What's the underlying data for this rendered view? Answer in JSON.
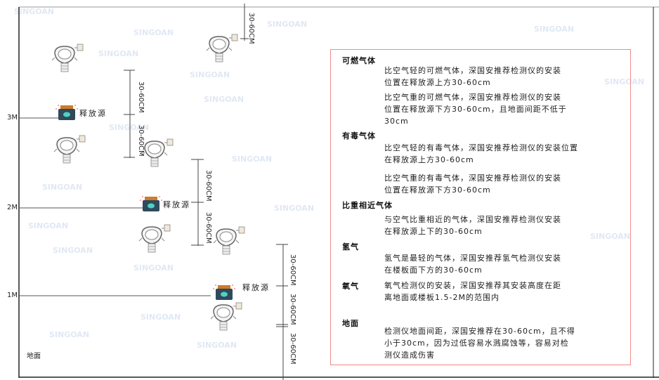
{
  "levels": {
    "l3": "3M",
    "l2": "2M",
    "l1": "1M",
    "ground": "地面"
  },
  "source_label": "释放源",
  "dimension_label": "30-60CM",
  "watermark": "SINGOAN 深国安",
  "colors": {
    "frame": "#333333",
    "box_border": "#f08a8a",
    "source_body": "#2f4a5a",
    "source_cap": "#d07a2a",
    "source_icon": "#4fd1c5"
  },
  "info": {
    "combustible": {
      "title": "可燃气体",
      "lighter": [
        "比空气轻的可燃气体，深国安推荐检测仪的安装",
        "位置在释放源上方30-60cm"
      ],
      "heavier": [
        "比空气重的可燃气体，深国安推荐检测仪的安装",
        "位置在释放源下方30-60cm，且地面间距不低于",
        "30cm"
      ]
    },
    "toxic": {
      "title": "有毒气体",
      "lighter": [
        "比空气轻的有毒气体，深国安推荐检测仪的安装位置",
        "在释放源上方30-60cm"
      ],
      "heavier": [
        "比空气重的有毒气体，深国安推荐检测仪的安装",
        "位置在释放源下方30-60cm"
      ]
    },
    "similar": {
      "title": "比重相近气体",
      "text": [
        "与空气比重相近的气体，深国安推荐检测仪安装",
        "在释放源上下的30-60cm"
      ]
    },
    "hydrogen": {
      "title": "氢气",
      "text": [
        "氢气是最轻的气体，深国安推荐氢气检测仪安装",
        "在楼板面下方的30-60cm"
      ]
    },
    "oxygen": {
      "title": "氧气",
      "text": [
        "氧气检测仪的安装，深国安推荐其安装高度在距",
        "离地面或楼板1.5-2M的范围内"
      ]
    },
    "ground": {
      "title": "地面",
      "text": [
        "检测仪地面间距，深国安推荐在30-60cm，且不得",
        "小于30cm，因为过低容易水溅腐蚀等，容易对检",
        "测仪造成伤害"
      ]
    }
  }
}
